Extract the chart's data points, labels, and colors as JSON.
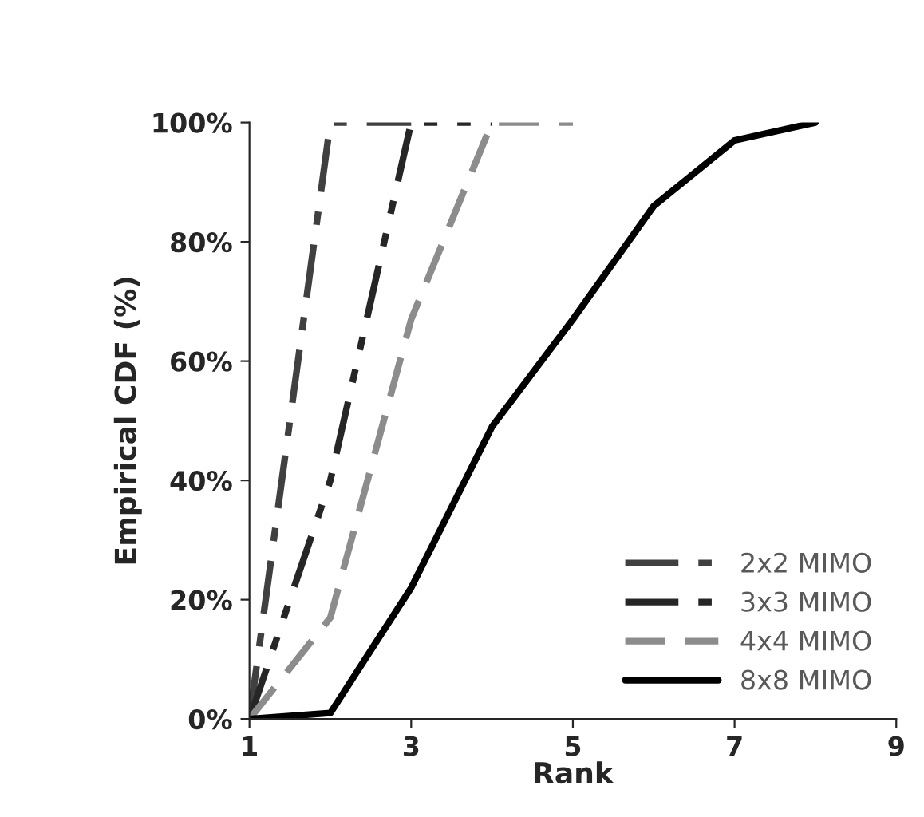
{
  "chart_data": {
    "type": "line",
    "xlabel": "Rank",
    "ylabel": "Empirical CDF (%)",
    "xlim": [
      1,
      9
    ],
    "xticks": [
      1,
      3,
      5,
      7,
      9
    ],
    "ylim": [
      0,
      100
    ],
    "yticks": [
      {
        "value": 0,
        "label": "0%"
      },
      {
        "value": 20,
        "label": "20%"
      },
      {
        "value": 40,
        "label": "40%"
      },
      {
        "value": 60,
        "label": "60%"
      },
      {
        "value": 80,
        "label": "80%"
      },
      {
        "value": 100,
        "label": "100%"
      }
    ],
    "grid": false,
    "legend": "bottom right",
    "marker": "none",
    "series": [
      {
        "name": "2x2 MIMO",
        "color": "#404040",
        "line_style": "dashdot",
        "x": [
          1,
          2,
          3
        ],
        "values": [
          0,
          100,
          100
        ]
      },
      {
        "name": "3x3 MIMO",
        "color": "#262626",
        "line_style": "dashdotdot",
        "x": [
          1,
          2,
          3,
          4
        ],
        "values": [
          0,
          40,
          100,
          100
        ]
      },
      {
        "name": "4x4 MIMO",
        "color": "#8c8c8c",
        "line_style": "dashed",
        "x": [
          1,
          2,
          3,
          4,
          5
        ],
        "values": [
          0,
          17,
          67,
          100,
          100
        ]
      },
      {
        "name": "8x8 MIMO",
        "color": "#000000",
        "line_style": "solid",
        "x": [
          1,
          2,
          3,
          4,
          5,
          6,
          7,
          8
        ],
        "values": [
          0,
          1,
          22,
          49,
          67,
          86,
          97,
          100
        ]
      }
    ]
  }
}
